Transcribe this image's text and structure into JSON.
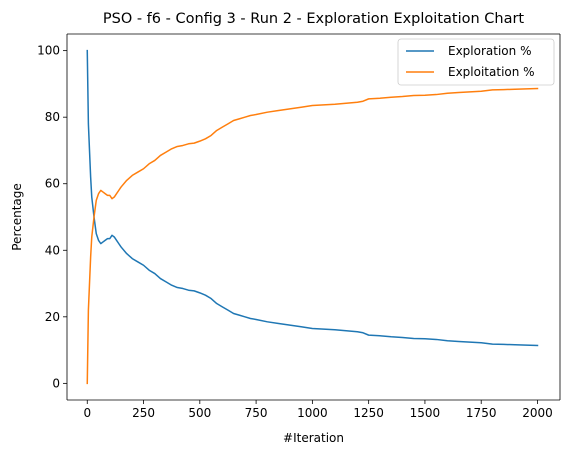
{
  "chart_data": {
    "type": "line",
    "title": "PSO - f6 - Config 3 - Run 2 - Exploration Exploitation Chart",
    "xlabel": "#Iteration",
    "ylabel": "Percentage",
    "xlim": [
      -90,
      2100
    ],
    "ylim": [
      -5,
      105
    ],
    "xticks": [
      0,
      250,
      500,
      750,
      1000,
      1250,
      1500,
      1750,
      2000
    ],
    "yticks": [
      0,
      20,
      40,
      60,
      80,
      100
    ],
    "grid": false,
    "legend_position": "top-right",
    "series": [
      {
        "name": "Exploration %",
        "color": "#1f77b4",
        "x": [
          0,
          5,
          10,
          15,
          20,
          30,
          40,
          50,
          60,
          70,
          80,
          90,
          100,
          110,
          120,
          130,
          140,
          150,
          175,
          200,
          225,
          250,
          275,
          300,
          325,
          350,
          375,
          400,
          425,
          450,
          475,
          500,
          525,
          550,
          575,
          600,
          625,
          650,
          675,
          700,
          725,
          750,
          800,
          850,
          900,
          950,
          1000,
          1050,
          1100,
          1150,
          1200,
          1225,
          1250,
          1300,
          1350,
          1400,
          1450,
          1500,
          1550,
          1600,
          1650,
          1700,
          1750,
          1800,
          1850,
          1900,
          1950,
          2000
        ],
        "y": [
          100,
          78,
          70,
          62,
          56,
          50,
          45,
          43,
          42,
          42.5,
          43,
          43.5,
          43.5,
          44.5,
          44,
          43,
          42,
          41,
          39,
          37.5,
          36.5,
          35.5,
          34,
          33,
          31.5,
          30.5,
          29.5,
          28.8,
          28.5,
          28,
          27.8,
          27.2,
          26.5,
          25.5,
          24,
          23,
          22,
          21,
          20.5,
          20,
          19.5,
          19.2,
          18.5,
          18,
          17.5,
          17,
          16.5,
          16.3,
          16.1,
          15.8,
          15.5,
          15.2,
          14.5,
          14.3,
          14,
          13.8,
          13.5,
          13.4,
          13.2,
          12.8,
          12.6,
          12.4,
          12.2,
          11.8,
          11.7,
          11.6,
          11.5,
          11.4
        ]
      },
      {
        "name": "Exploitation %",
        "color": "#ff7f0e",
        "x": [
          0,
          5,
          10,
          15,
          20,
          30,
          40,
          50,
          60,
          70,
          80,
          90,
          100,
          110,
          120,
          130,
          140,
          150,
          175,
          200,
          225,
          250,
          275,
          300,
          325,
          350,
          375,
          400,
          425,
          450,
          475,
          500,
          525,
          550,
          575,
          600,
          625,
          650,
          675,
          700,
          725,
          750,
          800,
          850,
          900,
          950,
          1000,
          1050,
          1100,
          1150,
          1200,
          1225,
          1250,
          1300,
          1350,
          1400,
          1450,
          1500,
          1550,
          1600,
          1650,
          1700,
          1750,
          1800,
          1850,
          1900,
          1950,
          2000
        ],
        "y": [
          0,
          22,
          30,
          38,
          44,
          50,
          55,
          57,
          58,
          57.5,
          57,
          56.5,
          56.5,
          55.5,
          56,
          57,
          58,
          59,
          61,
          62.5,
          63.5,
          64.5,
          66,
          67,
          68.5,
          69.5,
          70.5,
          71.2,
          71.5,
          72,
          72.2,
          72.8,
          73.5,
          74.5,
          76,
          77,
          78,
          79,
          79.5,
          80,
          80.5,
          80.8,
          81.5,
          82,
          82.5,
          83,
          83.5,
          83.7,
          83.9,
          84.2,
          84.5,
          84.8,
          85.5,
          85.7,
          86,
          86.2,
          86.5,
          86.6,
          86.8,
          87.2,
          87.4,
          87.6,
          87.8,
          88.2,
          88.3,
          88.4,
          88.5,
          88.6
        ]
      }
    ]
  }
}
